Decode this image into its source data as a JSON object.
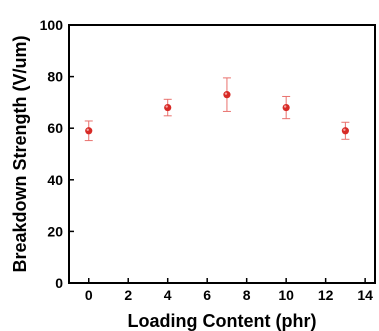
{
  "chart_data": {
    "type": "scatter",
    "title": "",
    "xlabel": "Loading Content (phr)",
    "ylabel": "Breakdown Strength (V/um)",
    "xlim": [
      -1,
      14.5
    ],
    "ylim": [
      0,
      100
    ],
    "xticks": [
      0,
      2,
      4,
      6,
      8,
      10,
      12,
      14
    ],
    "yticks": [
      0,
      20,
      40,
      60,
      80,
      100
    ],
    "x_tick_labels": [
      "0",
      "2",
      "4",
      "6",
      "8",
      "10",
      "12",
      "14"
    ],
    "y_tick_labels": [
      "0",
      "20",
      "40",
      "60",
      "80",
      "100"
    ],
    "grid": false,
    "series": [
      {
        "x": [
          0,
          4,
          7,
          10,
          13
        ],
        "y": [
          59,
          68,
          73,
          68,
          59
        ],
        "error": [
          3.8,
          3.2,
          6.5,
          4.3,
          3.3
        ],
        "marker_color": "#d72a26",
        "error_color": "#e9716d"
      }
    ]
  }
}
